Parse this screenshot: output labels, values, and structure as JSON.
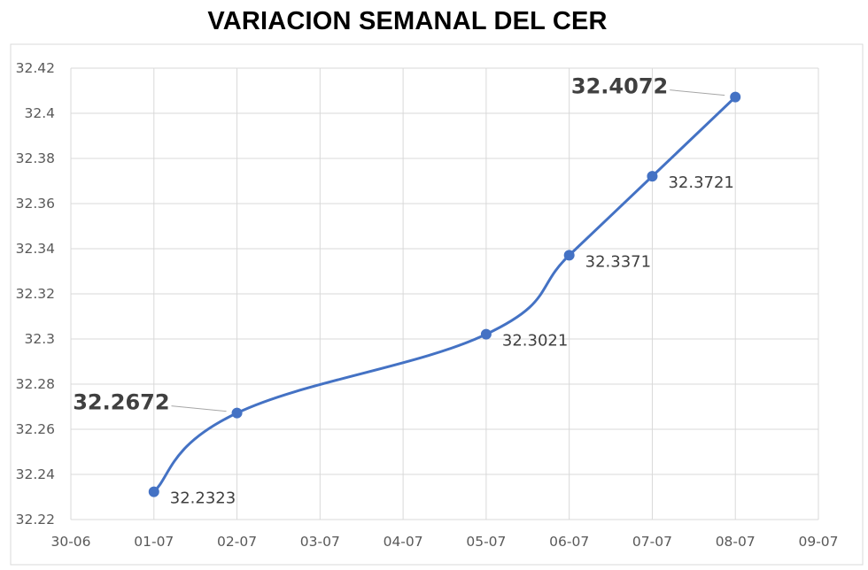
{
  "chart_data": {
    "type": "line",
    "title": "VARIACION SEMANAL DEL CER",
    "xlabel": "",
    "ylabel": "",
    "x_ticks": [
      "30-06",
      "01-07",
      "02-07",
      "03-07",
      "04-07",
      "05-07",
      "06-07",
      "07-07",
      "08-07",
      "09-07"
    ],
    "y_ticks": [
      "32.22",
      "32.24",
      "32.26",
      "32.28",
      "32.3",
      "32.32",
      "32.34",
      "32.36",
      "32.38",
      "32.4",
      "32.42"
    ],
    "ylim": [
      32.22,
      32.42
    ],
    "grid": true,
    "legend": "none",
    "smooth": true,
    "series": [
      {
        "color": "#4472C4",
        "points": [
          {
            "x": "01-07",
            "y": 32.2323,
            "label": "32.2323",
            "emphasis": false
          },
          {
            "x": "02-07",
            "y": 32.2672,
            "label": "32.2672",
            "emphasis": true
          },
          {
            "x": "05-07",
            "y": 32.3021,
            "label": "32.3021",
            "emphasis": false
          },
          {
            "x": "06-07",
            "y": 32.3371,
            "label": "32.3371",
            "emphasis": false
          },
          {
            "x": "07-07",
            "y": 32.3721,
            "label": "32.3721",
            "emphasis": false
          },
          {
            "x": "08-07",
            "y": 32.4072,
            "label": "32.4072",
            "emphasis": true
          }
        ]
      }
    ]
  }
}
